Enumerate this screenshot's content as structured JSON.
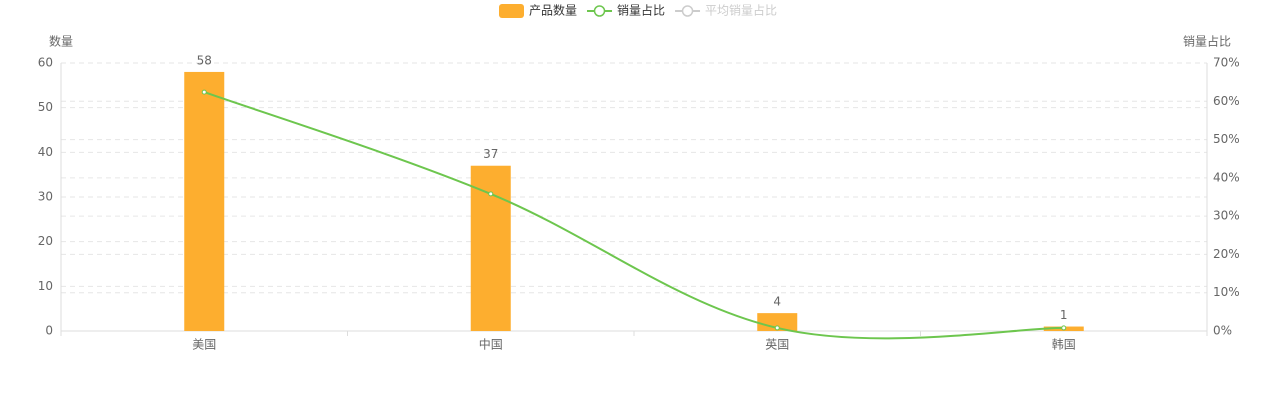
{
  "chart_data": {
    "type": "bar_line",
    "categories": [
      "美国",
      "中国",
      "英国",
      "韩国"
    ],
    "series": [
      {
        "name": "产品数量",
        "type": "bar",
        "color": "#fdae2f",
        "values": [
          58,
          37,
          4,
          1
        ]
      },
      {
        "name": "销量占比",
        "type": "line",
        "axis": "y2",
        "color": "#6dc64e",
        "values": [
          62.4,
          35.8,
          0.8,
          0.8
        ]
      }
    ],
    "inactive_series": [
      {
        "name": "平均销量占比",
        "color": "#cccccc"
      }
    ],
    "ylabel": "数量",
    "y2label": "销量占比",
    "ylim": [
      0,
      60
    ],
    "yticks": [
      0,
      10,
      20,
      30,
      40,
      50,
      60
    ],
    "y2lim": [
      0,
      70
    ],
    "y2ticks": [
      {
        "value": 0,
        "label": "0%"
      },
      {
        "value": 10,
        "label": "10%"
      },
      {
        "value": 20,
        "label": "20%"
      },
      {
        "value": 30,
        "label": "30%"
      },
      {
        "value": 40,
        "label": "40%"
      },
      {
        "value": 50,
        "label": "50%"
      },
      {
        "value": 60,
        "label": "60%"
      },
      {
        "value": 70,
        "label": "70%"
      }
    ],
    "grid": true
  }
}
